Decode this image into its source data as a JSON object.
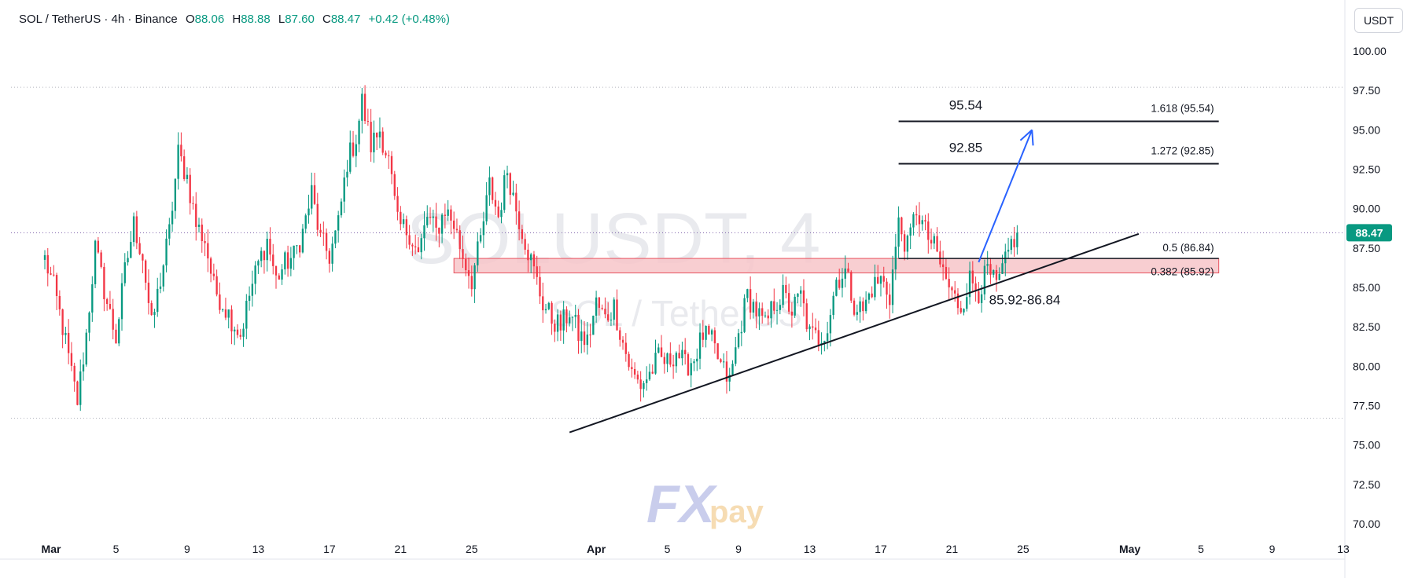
{
  "header": {
    "symbol": "SOL / TetherUS · 4h · Binance",
    "o_label": "O",
    "o": "88.06",
    "h_label": "H",
    "h": "88.88",
    "l_label": "L",
    "l": "87.60",
    "c_label": "C",
    "c": "88.47",
    "change": "+0.42 (+0.48%)"
  },
  "currency_button": "USDT",
  "watermark": {
    "symbol": "SOLUSDT, 4",
    "name": "SOL / TetherUS"
  },
  "logo": {
    "text_fx": "FX",
    "text_pay": "pay"
  },
  "colors": {
    "up": "#089981",
    "down": "#f23645",
    "zone_fill": "#f7c5c9",
    "zone_stroke": "#e8515e",
    "arrow": "#2962ff",
    "price_tag": "#089981",
    "text": "#131722",
    "axis_text": "#131722"
  },
  "chart_data": {
    "type": "candlestick",
    "ylim": [
      68.5,
      101.5
    ],
    "y_ticks": [
      "100.00",
      "97.50",
      "95.00",
      "92.50",
      "90.00",
      "87.50",
      "85.00",
      "82.50",
      "80.00",
      "77.50",
      "75.00",
      "72.50",
      "70.00"
    ],
    "x_ticks": [
      "Mar",
      "5",
      "9",
      "13",
      "17",
      "21",
      "25",
      "Apr",
      "5",
      "9",
      "13",
      "17",
      "21",
      "25",
      "May",
      "5",
      "9",
      "13"
    ],
    "x_start": "2024-03-01",
    "x_end": "2024-05-13",
    "last_price": "88.47",
    "dotted_levels": [
      97.7,
      88.47,
      76.7
    ],
    "zone": {
      "low": 85.92,
      "high": 86.84,
      "from": "2024-03-24",
      "to": "2024-05-13",
      "label": "85.92-86.84"
    },
    "fib_levels": [
      {
        "value": 95.54,
        "label": "1.618 (95.54)",
        "big_label": "95.54"
      },
      {
        "value": 92.85,
        "label": "1.272 (92.85)",
        "big_label": "92.85"
      },
      {
        "value": 86.84,
        "label": "0.5 (86.84)"
      },
      {
        "value": 85.92,
        "label": "0.382 (85.92)"
      }
    ],
    "trendline": {
      "from": [
        "2024-03-30T12:00",
        75.8
      ],
      "to": [
        "2024-05-01T12:00",
        88.4
      ]
    },
    "projection_arrow": {
      "from": [
        "2024-04-22T12:00",
        86.6
      ],
      "to": [
        "2024-04-25T12:00",
        95.0
      ]
    },
    "close_path": [
      [
        "2024-03-01T00:00",
        86.8
      ],
      [
        "2024-03-01T12:00",
        85.0
      ],
      [
        "2024-03-02T00:00",
        82.5
      ],
      [
        "2024-03-02T12:00",
        79.5
      ],
      [
        "2024-03-02T20:00",
        77.8
      ],
      [
        "2024-03-03T08:00",
        82.0
      ],
      [
        "2024-03-03T20:00",
        87.5
      ],
      [
        "2024-03-04T12:00",
        84.0
      ],
      [
        "2024-03-05T00:00",
        81.8
      ],
      [
        "2024-03-05T12:00",
        86.0
      ],
      [
        "2024-03-06T00:00",
        89.0
      ],
      [
        "2024-03-06T12:00",
        87.0
      ],
      [
        "2024-03-07T00:00",
        82.5
      ],
      [
        "2024-03-07T12:00",
        85.5
      ],
      [
        "2024-03-08T00:00",
        88.5
      ],
      [
        "2024-03-08T12:00",
        93.5
      ],
      [
        "2024-03-09T00:00",
        92.0
      ],
      [
        "2024-03-09T12:00",
        89.0
      ],
      [
        "2024-03-10T00:00",
        88.0
      ],
      [
        "2024-03-10T12:00",
        85.0
      ],
      [
        "2024-03-11T00:00",
        84.0
      ],
      [
        "2024-03-11T12:00",
        83.0
      ],
      [
        "2024-03-12T00:00",
        82.0
      ],
      [
        "2024-03-12T12:00",
        84.5
      ],
      [
        "2024-03-13T00:00",
        86.5
      ],
      [
        "2024-03-13T12:00",
        88.0
      ],
      [
        "2024-03-14T00:00",
        85.5
      ],
      [
        "2024-03-14T12:00",
        86.5
      ],
      [
        "2024-03-15T00:00",
        87.0
      ],
      [
        "2024-03-15T12:00",
        88.5
      ],
      [
        "2024-03-16T00:00",
        91.0
      ],
      [
        "2024-03-16T12:00",
        88.0
      ],
      [
        "2024-03-17T00:00",
        87.0
      ],
      [
        "2024-03-17T12:00",
        89.0
      ],
      [
        "2024-03-18T00:00",
        93.0
      ],
      [
        "2024-03-18T12:00",
        94.5
      ],
      [
        "2024-03-18T20:00",
        96.8
      ],
      [
        "2024-03-19T08:00",
        94.0
      ],
      [
        "2024-03-19T20:00",
        95.0
      ],
      [
        "2024-03-20T08:00",
        93.0
      ],
      [
        "2024-03-20T20:00",
        89.0
      ],
      [
        "2024-03-21T12:00",
        88.5
      ],
      [
        "2024-03-22T00:00",
        87.0
      ],
      [
        "2024-03-22T12:00",
        89.5
      ],
      [
        "2024-03-23T00:00",
        88.5
      ],
      [
        "2024-03-23T12:00",
        90.0
      ],
      [
        "2024-03-24T00:00",
        89.0
      ],
      [
        "2024-03-24T12:00",
        87.0
      ],
      [
        "2024-03-25T00:00",
        85.5
      ],
      [
        "2024-03-25T12:00",
        88.0
      ],
      [
        "2024-03-26T00:00",
        91.5
      ],
      [
        "2024-03-26T12:00",
        89.5
      ],
      [
        "2024-03-27T00:00",
        92.5
      ],
      [
        "2024-03-27T12:00",
        90.0
      ],
      [
        "2024-03-28T00:00",
        88.0
      ],
      [
        "2024-03-28T12:00",
        86.0
      ],
      [
        "2024-03-29T00:00",
        84.0
      ],
      [
        "2024-03-29T12:00",
        83.0
      ],
      [
        "2024-03-30T00:00",
        82.5
      ],
      [
        "2024-03-30T12:00",
        83.5
      ],
      [
        "2024-03-31T00:00",
        82.0
      ],
      [
        "2024-03-31T12:00",
        81.5
      ],
      [
        "2024-04-01T00:00",
        84.0
      ],
      [
        "2024-04-01T12:00",
        83.0
      ],
      [
        "2024-04-02T00:00",
        83.8
      ],
      [
        "2024-04-02T12:00",
        81.5
      ],
      [
        "2024-04-03T00:00",
        79.5
      ],
      [
        "2024-04-03T12:00",
        78.8
      ],
      [
        "2024-04-04T00:00",
        79.5
      ],
      [
        "2024-04-04T12:00",
        80.5
      ],
      [
        "2024-04-05T00:00",
        80.2
      ],
      [
        "2024-04-05T12:00",
        81.0
      ],
      [
        "2024-04-06T00:00",
        80.0
      ],
      [
        "2024-04-06T12:00",
        80.5
      ],
      [
        "2024-04-07T00:00",
        82.0
      ],
      [
        "2024-04-07T12:00",
        81.5
      ],
      [
        "2024-04-08T00:00",
        80.0
      ],
      [
        "2024-04-08T12:00",
        79.0
      ],
      [
        "2024-04-09T00:00",
        82.0
      ],
      [
        "2024-04-09T12:00",
        84.5
      ],
      [
        "2024-04-10T00:00",
        83.5
      ],
      [
        "2024-04-10T12:00",
        82.5
      ],
      [
        "2024-04-11T00:00",
        84.0
      ],
      [
        "2024-04-11T12:00",
        84.5
      ],
      [
        "2024-04-12T00:00",
        83.5
      ],
      [
        "2024-04-12T12:00",
        84.5
      ],
      [
        "2024-04-13T00:00",
        82.0
      ],
      [
        "2024-04-13T12:00",
        81.8
      ],
      [
        "2024-04-14T00:00",
        82.5
      ],
      [
        "2024-04-14T12:00",
        85.5
      ],
      [
        "2024-04-15T00:00",
        86.0
      ],
      [
        "2024-04-15T12:00",
        84.0
      ],
      [
        "2024-04-16T00:00",
        83.5
      ],
      [
        "2024-04-16T12:00",
        85.0
      ],
      [
        "2024-04-17T00:00",
        85.5
      ],
      [
        "2024-04-17T12:00",
        84.5
      ],
      [
        "2024-04-18T00:00",
        89.0
      ],
      [
        "2024-04-18T12:00",
        87.5
      ],
      [
        "2024-04-19T00:00",
        90.0
      ],
      [
        "2024-04-19T12:00",
        88.5
      ],
      [
        "2024-04-20T00:00",
        87.5
      ],
      [
        "2024-04-20T12:00",
        86.0
      ],
      [
        "2024-04-21T00:00",
        84.5
      ],
      [
        "2024-04-21T12:00",
        83.8
      ],
      [
        "2024-04-22T00:00",
        85.5
      ],
      [
        "2024-04-22T12:00",
        84.8
      ],
      [
        "2024-04-23T00:00",
        86.0
      ],
      [
        "2024-04-23T12:00",
        85.0
      ],
      [
        "2024-04-24T00:00",
        86.5
      ],
      [
        "2024-04-24T08:00",
        87.8
      ],
      [
        "2024-04-24T16:00",
        88.47
      ]
    ]
  }
}
